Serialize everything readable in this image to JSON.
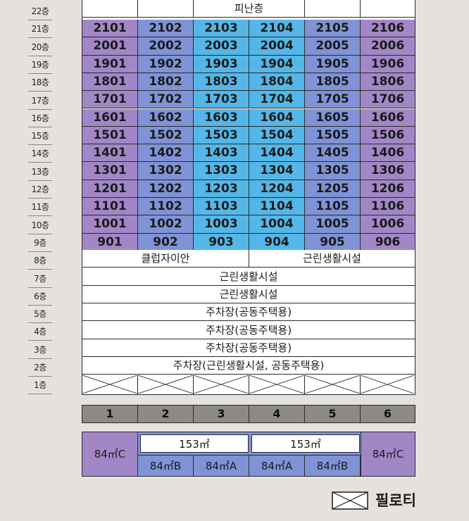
{
  "floors": [
    "22층",
    "21층",
    "20층",
    "19층",
    "18층",
    "17층",
    "16층",
    "15층",
    "14층",
    "13층",
    "12층",
    "11층",
    "10층",
    "9층",
    "8층",
    "7층",
    "6층",
    "5층",
    "4층",
    "3층",
    "2층",
    "1층"
  ],
  "refuge_floor_label": "피난층",
  "unit_rows": [
    [
      "2101",
      "2102",
      "2103",
      "2104",
      "2105",
      "2106"
    ],
    [
      "2001",
      "2002",
      "2003",
      "2004",
      "2005",
      "2006"
    ],
    [
      "1901",
      "1902",
      "1903",
      "1904",
      "1905",
      "1906"
    ],
    [
      "1801",
      "1802",
      "1803",
      "1804",
      "1805",
      "1806"
    ],
    [
      "1701",
      "1702",
      "1703",
      "1704",
      "1705",
      "1706"
    ],
    [
      "1601",
      "1602",
      "1603",
      "1604",
      "1605",
      "1606"
    ],
    [
      "1501",
      "1502",
      "1503",
      "1504",
      "1505",
      "1506"
    ],
    [
      "1401",
      "1402",
      "1403",
      "1404",
      "1405",
      "1406"
    ],
    [
      "1301",
      "1302",
      "1303",
      "1304",
      "1305",
      "1306"
    ],
    [
      "1201",
      "1202",
      "1203",
      "1204",
      "1205",
      "1206"
    ],
    [
      "1101",
      "1102",
      "1103",
      "1104",
      "1105",
      "1106"
    ],
    [
      "1001",
      "1002",
      "1003",
      "1004",
      "1005",
      "1006"
    ],
    [
      "901",
      "902",
      "903",
      "904",
      "905",
      "906"
    ]
  ],
  "column_colors": [
    "#a287c7",
    "#7f93d6",
    "#54b7e8",
    "#54b7e8",
    "#7f93d6",
    "#a287c7"
  ],
  "floor8": {
    "left": "클럽자이안",
    "right": "근린생활시설"
  },
  "floor7": "근린생활시설",
  "floor6": "근린생활시설",
  "floor5": "주차장(공동주택용)",
  "floor4": "주차장(공동주택용)",
  "floor3": "주차장(공동주택용)",
  "floor2": "주차장(근린생활시설, 공동주택용)",
  "line_numbers": [
    "1",
    "2",
    "3",
    "4",
    "5",
    "6"
  ],
  "unit_types": {
    "line1": "84㎡C",
    "group_a_total": "153㎡",
    "line2": "84㎡B",
    "line3": "84㎡A",
    "group_b_total": "153㎡",
    "line4": "84㎡A",
    "line5": "84㎡B",
    "line6": "84㎡C"
  },
  "legend": {
    "label": "필로티",
    "icon": "pilotis-x-icon"
  }
}
